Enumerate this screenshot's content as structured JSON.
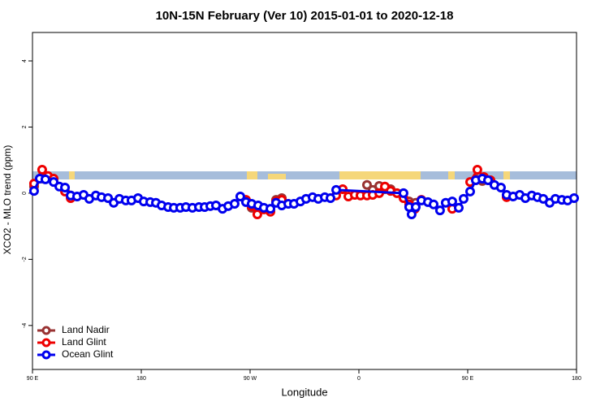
{
  "chart_data": {
    "type": "line",
    "title": "10N-15N February (Ver 10)   2015-01-01 to 2020-12-18",
    "xlabel": "Longitude",
    "ylabel": "XCO2 - MLO trend (ppm)",
    "xlim": [
      90,
      540
    ],
    "ylim": [
      -5.33,
      4.86
    ],
    "xticks": [
      {
        "value": 90,
        "label": "90 E"
      },
      180,
      {
        "value": 270,
        "label": "90 W"
      },
      {
        "value": 360,
        "label": "0"
      },
      {
        "value": 450,
        "label": "90 E"
      },
      {
        "value": 540,
        "label": "180"
      }
    ],
    "yticks": [
      -4,
      -2,
      0,
      2,
      4
    ],
    "legend": "bottom-left",
    "series": [
      {
        "name": "Land Nadir",
        "color": "#993333",
        "x": [
          91.3,
          98.7,
          102.8,
          null,
          121.6,
          null,
          271.3,
          null,
          291.5,
          296.2,
          null,
          366.7,
          371.4,
          376.8,
          381.5,
          386.2,
          null,
          401.6,
          407,
          null,
          437.2,
          null,
          456.7,
          462.1
        ],
        "values": [
          0.2,
          0.44,
          0.49,
          null,
          -0.07,
          null,
          -0.44,
          null,
          -0.2,
          -0.15,
          null,
          0.25,
          0.1,
          0.22,
          0.12,
          0.12,
          null,
          -0.25,
          -0.29,
          null,
          -0.37,
          null,
          0.42,
          0.37
        ]
      },
      {
        "name": "Land Glint",
        "color": "#ee0000",
        "x": [
          91.3,
          98,
          102.8,
          107.5,
          116.9,
          121.6,
          null,
          266.6,
          271.3,
          276,
          281.4,
          286.8,
          291.5,
          296.2,
          null,
          341.2,
          346.6,
          351.3,
          356.6,
          361.3,
          366.7,
          371.4,
          376.8,
          381.5,
          386.2,
          391.5,
          396.9,
          401.6,
          406.3,
          411.7,
          null,
          437.2,
          null,
          452,
          458,
          463.4,
          468.8,
          null,
          482.2
        ],
        "values": [
          0.29,
          0.71,
          0.52,
          0.44,
          0.05,
          -0.15,
          null,
          -0.2,
          -0.39,
          -0.64,
          -0.49,
          -0.56,
          -0.25,
          -0.2,
          null,
          -0.07,
          0.12,
          -0.1,
          -0.05,
          -0.07,
          -0.07,
          -0.05,
          0,
          0.2,
          0.07,
          0,
          -0.15,
          -0.34,
          -0.47,
          -0.2,
          null,
          -0.47,
          null,
          0.34,
          0.71,
          0.49,
          0.39,
          null,
          -0.12
        ]
      },
      {
        "name": "Ocean Glint",
        "color": "#0000ee",
        "x": [
          91.3,
          96,
          100.7,
          107.5,
          112.2,
          116.9,
          121.6,
          126.9,
          132.3,
          137,
          142.4,
          147.1,
          152.5,
          157.2,
          161.9,
          167.2,
          171.9,
          177.3,
          182,
          187.4,
          192.1,
          196.8,
          202.2,
          206.9,
          212.2,
          216.9,
          222.3,
          227.7,
          232.4,
          237.1,
          241.8,
          247.2,
          251.9,
          257.2,
          261.9,
          266.6,
          271.3,
          276.7,
          281.4,
          286.8,
          291.5,
          296.2,
          301.6,
          306.3,
          311.6,
          316.3,
          321.7,
          326.4,
          331.8,
          336.5,
          341.2,
          396.9,
          401.6,
          403.6,
          407,
          411.7,
          417.1,
          421.8,
          427.1,
          431.8,
          437.2,
          442.6,
          446.6,
          452,
          456.7,
          462.1,
          466.8,
          472.1,
          477.5,
          482.2,
          487.6,
          493,
          497.7,
          503,
          507.7,
          512.5,
          517.8,
          522.5,
          527.9,
          532.6,
          538
        ],
        "values": [
          0.07,
          0.44,
          0.42,
          0.34,
          0.2,
          0.17,
          -0.07,
          -0.1,
          -0.05,
          -0.17,
          -0.07,
          -0.12,
          -0.15,
          -0.29,
          -0.17,
          -0.22,
          -0.22,
          -0.15,
          -0.25,
          -0.27,
          -0.29,
          -0.37,
          -0.42,
          -0.44,
          -0.44,
          -0.42,
          -0.44,
          -0.42,
          -0.42,
          -0.39,
          -0.37,
          -0.47,
          -0.39,
          -0.32,
          -0.1,
          -0.27,
          -0.32,
          -0.37,
          -0.44,
          -0.47,
          -0.29,
          -0.37,
          -0.32,
          -0.32,
          -0.25,
          -0.17,
          -0.12,
          -0.17,
          -0.12,
          -0.15,
          0.1,
          0,
          -0.42,
          -0.64,
          -0.42,
          -0.22,
          -0.27,
          -0.34,
          -0.52,
          -0.29,
          -0.25,
          -0.44,
          -0.17,
          0.05,
          0.39,
          0.44,
          0.39,
          0.25,
          0.17,
          -0.05,
          -0.1,
          -0.05,
          -0.15,
          -0.07,
          -0.12,
          -0.17,
          -0.29,
          -0.17,
          -0.2,
          -0.22,
          -0.15
        ]
      }
    ]
  }
}
